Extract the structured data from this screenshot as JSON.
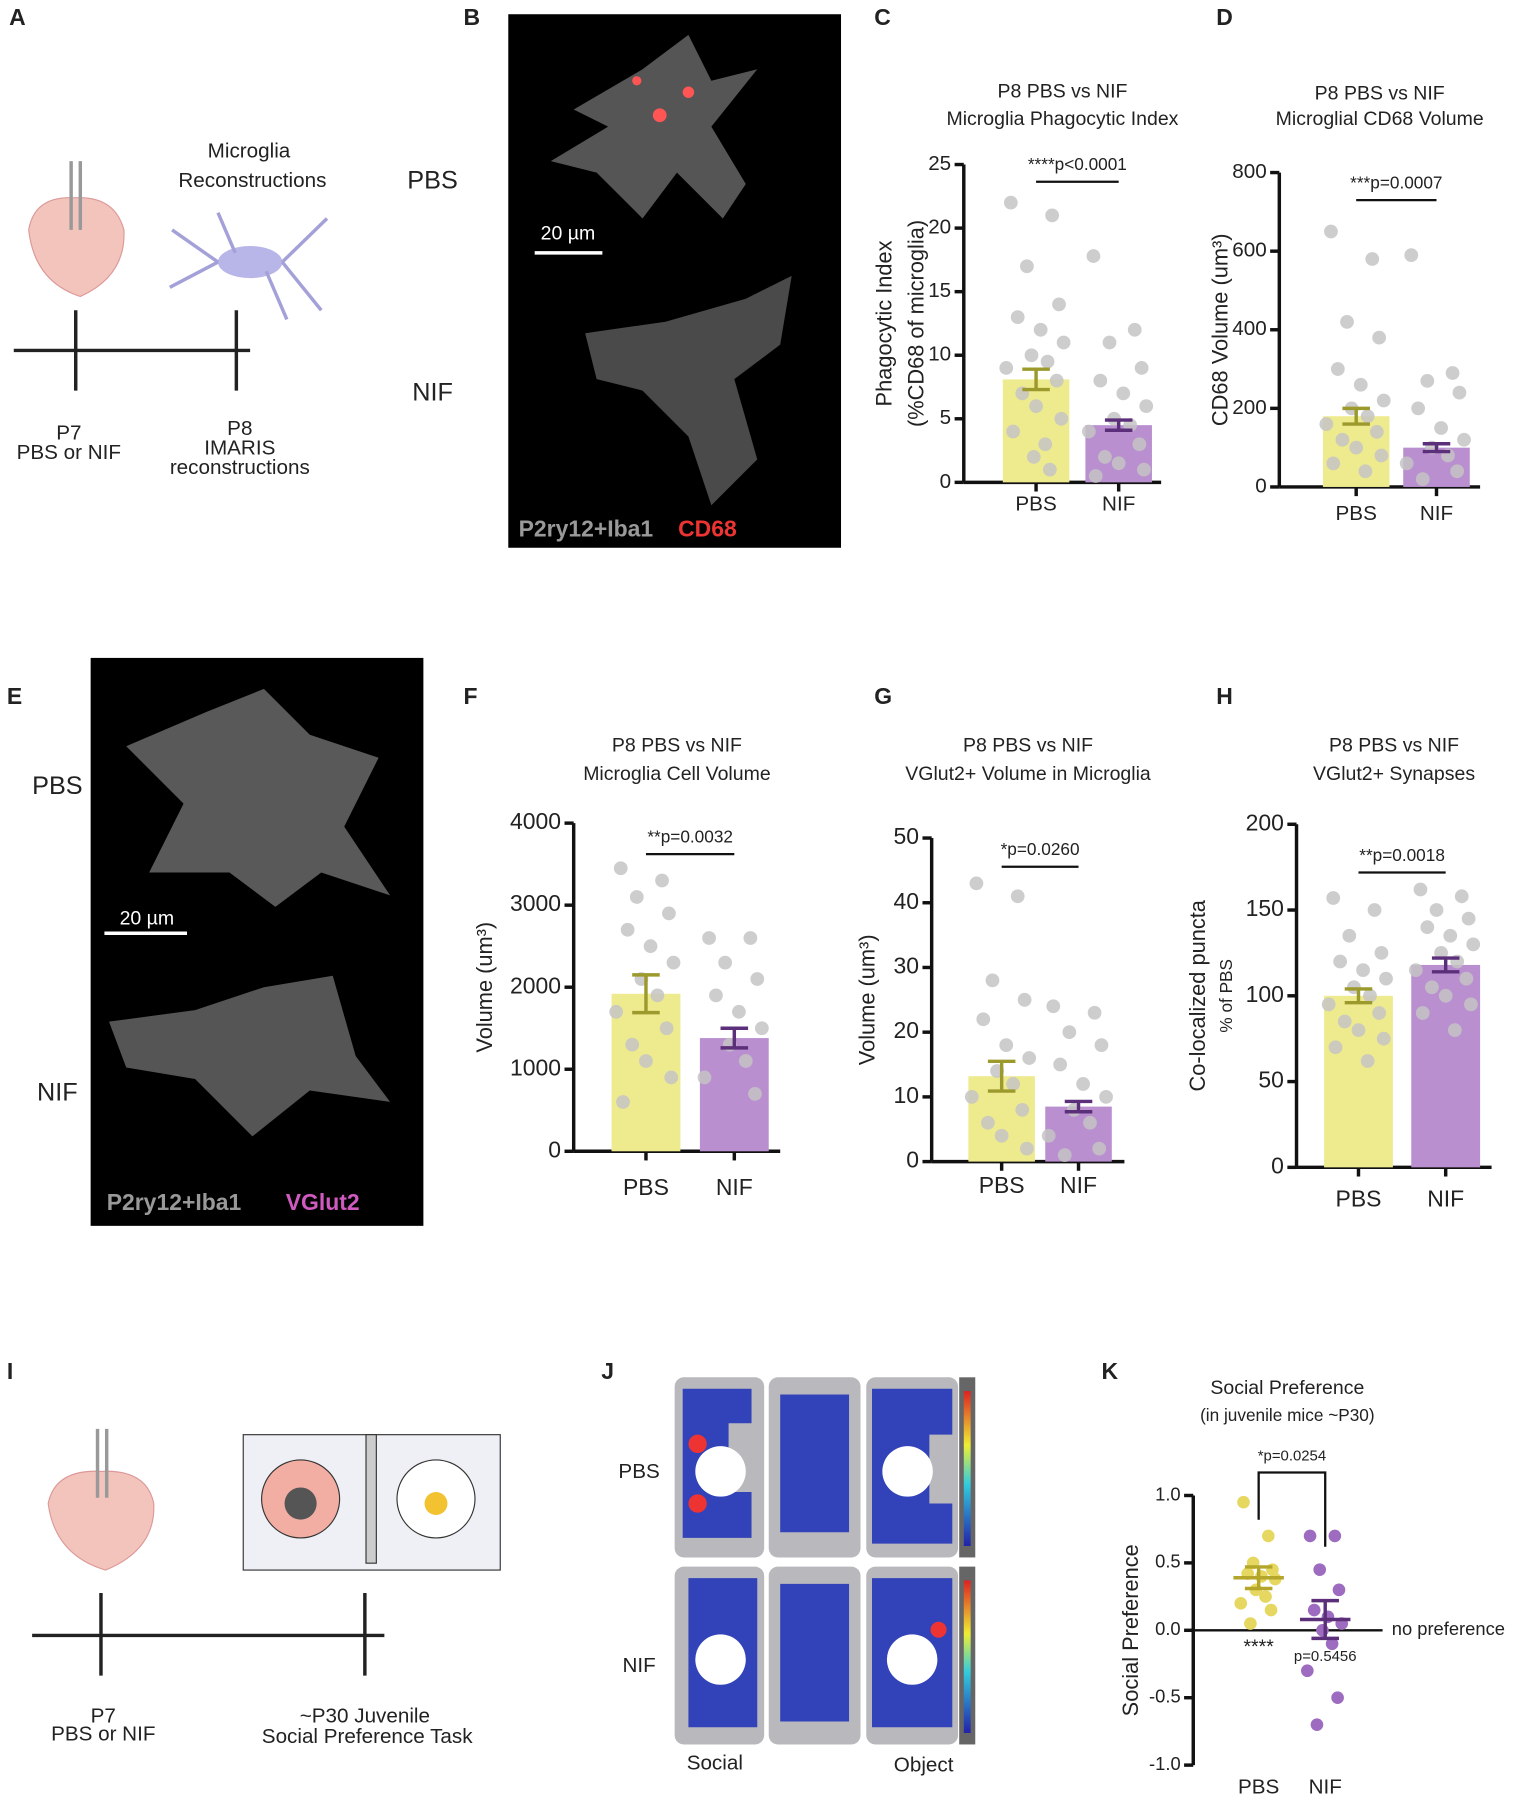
{
  "panels": {
    "a": "A",
    "b": "B",
    "c": "C",
    "d": "D",
    "e": "E",
    "f": "F",
    "g": "G",
    "h": "H",
    "i": "I",
    "j": "J",
    "k": "K"
  },
  "schematic_a": {
    "label": [
      "Microglia",
      "Reconstructions"
    ],
    "t1": [
      "P7",
      "PBS or NIF"
    ],
    "t2": [
      "P8",
      "IMARIS",
      "reconstructions"
    ]
  },
  "image_b": {
    "groups": [
      "PBS",
      "NIF"
    ],
    "scale": "20 µm",
    "stain": "P2ry12+Iba1",
    "marker": "CD68"
  },
  "image_e": {
    "groups": [
      "PBS",
      "NIF"
    ],
    "scale": "20 µm",
    "stain": "P2ry12+Iba1",
    "marker": "VGlut2"
  },
  "schematic_i": {
    "t1": [
      "P7",
      "PBS or NIF"
    ],
    "t2": [
      "~P30 Juvenile",
      "Social Preference Task"
    ]
  },
  "heatmap_j": {
    "groups": [
      "PBS",
      "NIF"
    ],
    "zones": [
      "Social",
      "Object"
    ]
  },
  "chart_data": [
    {
      "type": "bar",
      "title": [
        "P8 PBS vs NIF",
        "Microglia Phagocytic Index"
      ],
      "ylabel": [
        "Phagocytic Index",
        "(%CD68 of microglia)"
      ],
      "categories": [
        "PBS",
        "NIF"
      ],
      "values": [
        8.1,
        4.5
      ],
      "errors": [
        0.8,
        0.4
      ],
      "colors": [
        "#eeeb8f",
        "#b98fd0"
      ],
      "error_colors": [
        "#9c9a2c",
        "#5c2f7a"
      ],
      "points": [
        [
          22,
          21,
          17,
          14,
          13,
          12,
          11,
          10,
          9.5,
          9,
          8,
          7,
          6,
          5,
          4,
          3,
          2,
          1
        ],
        [
          17.8,
          12,
          11,
          9,
          8,
          7,
          6,
          5,
          4.5,
          4,
          3,
          2,
          1.5,
          1,
          0.5
        ]
      ],
      "annotation": "****p<0.0001",
      "ylim": [
        0,
        25
      ],
      "yticks": [
        0,
        5,
        10,
        15,
        20,
        25
      ]
    },
    {
      "type": "bar",
      "title": [
        "P8 PBS vs NIF",
        "Microglial CD68 Volume"
      ],
      "ylabel": [
        "CD68 Volume (um³)"
      ],
      "categories": [
        "PBS",
        "NIF"
      ],
      "values": [
        180,
        100
      ],
      "errors": [
        20,
        10
      ],
      "colors": [
        "#eeeb8f",
        "#b98fd0"
      ],
      "error_colors": [
        "#9c9a2c",
        "#5c2f7a"
      ],
      "points": [
        [
          650,
          580,
          420,
          380,
          300,
          260,
          220,
          200,
          180,
          160,
          140,
          120,
          100,
          80,
          60,
          40
        ],
        [
          590,
          290,
          270,
          240,
          200,
          150,
          120,
          100,
          80,
          60,
          40,
          20
        ]
      ],
      "annotation": "***p=0.0007",
      "ylim": [
        0,
        800
      ],
      "yticks": [
        0,
        200,
        400,
        600,
        800
      ]
    },
    {
      "type": "bar",
      "title": [
        "P8 PBS vs NIF",
        "Microglia Cell Volume"
      ],
      "ylabel": [
        "Volume (um³)"
      ],
      "categories": [
        "PBS",
        "NIF"
      ],
      "values": [
        1920,
        1380
      ],
      "errors": [
        230,
        120
      ],
      "colors": [
        "#eeeb8f",
        "#b98fd0"
      ],
      "error_colors": [
        "#9c9a2c",
        "#5c2f7a"
      ],
      "points": [
        [
          3450,
          3300,
          3100,
          2900,
          2700,
          2500,
          2300,
          2100,
          1900,
          1700,
          1500,
          1300,
          1100,
          900,
          600
        ],
        [
          2600,
          2600,
          2300,
          2100,
          1900,
          1700,
          1500,
          1300,
          1100,
          900,
          700
        ]
      ],
      "annotation": "**p=0.0032",
      "ylim": [
        0,
        4000
      ],
      "yticks": [
        0,
        1000,
        2000,
        3000,
        4000
      ]
    },
    {
      "type": "bar",
      "title": [
        "P8 PBS vs NIF",
        "VGlut2+ Volume in Microglia"
      ],
      "ylabel": [
        "Volume (um³)"
      ],
      "categories": [
        "PBS",
        "NIF"
      ],
      "values": [
        13.2,
        8.5
      ],
      "errors": [
        2.3,
        0.8
      ],
      "colors": [
        "#eeeb8f",
        "#b98fd0"
      ],
      "error_colors": [
        "#9c9a2c",
        "#5c2f7a"
      ],
      "points": [
        [
          43,
          41,
          28,
          25,
          22,
          18,
          16,
          14,
          12,
          10,
          8,
          6,
          4,
          2
        ],
        [
          24,
          23,
          20,
          18,
          15,
          12,
          10,
          8,
          6,
          4,
          2,
          1
        ]
      ],
      "annotation": "*p=0.0260",
      "ylim": [
        0,
        50
      ],
      "yticks": [
        0,
        10,
        20,
        30,
        40,
        50
      ]
    },
    {
      "type": "bar",
      "title": [
        "P8 PBS vs NIF",
        "VGlut2+ Synapses"
      ],
      "ylabel": [
        "Co-localized puncta",
        "% of PBS"
      ],
      "categories": [
        "PBS",
        "NIF"
      ],
      "values": [
        100,
        118
      ],
      "errors": [
        4,
        4
      ],
      "colors": [
        "#eeeb8f",
        "#b98fd0"
      ],
      "error_colors": [
        "#9c9a2c",
        "#5c2f7a"
      ],
      "points": [
        [
          157,
          150,
          135,
          125,
          120,
          115,
          110,
          105,
          100,
          95,
          90,
          85,
          80,
          75,
          70,
          62
        ],
        [
          162,
          158,
          150,
          145,
          140,
          135,
          130,
          125,
          120,
          115,
          110,
          105,
          100,
          95,
          90,
          80
        ]
      ],
      "annotation": "**p=0.0018",
      "ylim": [
        0,
        200
      ],
      "yticks": [
        0,
        50,
        100,
        150,
        200
      ]
    },
    {
      "type": "dot",
      "title": [
        "Social Preference",
        "(in juvenile mice ~P30)"
      ],
      "ylabel": [
        "Social Preference"
      ],
      "categories": [
        "PBS",
        "NIF"
      ],
      "values": [
        0.39,
        0.08
      ],
      "errors": [
        0.08,
        0.14
      ],
      "colors": [
        "#e6d760",
        "#9d6cc0"
      ],
      "error_colors": [
        "#b3a62a",
        "#5c2f7a"
      ],
      "points": [
        [
          0.95,
          0.7,
          0.5,
          0.45,
          0.42,
          0.4,
          0.38,
          0.3,
          0.25,
          0.2,
          0.15,
          0.05
        ],
        [
          0.7,
          0.7,
          0.45,
          0.3,
          0.15,
          0.1,
          0.05,
          0,
          -0.1,
          -0.3,
          -0.5,
          -0.7
        ]
      ],
      "annotation": "*p=0.0254",
      "group_annotations": [
        "****",
        "p=0.5456"
      ],
      "reference_label": "no preference",
      "ylim": [
        -1,
        1
      ],
      "yticks": [
        {
          "value": -1,
          "label": "-1.0"
        },
        -0.5,
        {
          "value": 0,
          "label": "0.0"
        },
        0.5,
        {
          "value": 1,
          "label": "1.0"
        }
      ]
    }
  ]
}
